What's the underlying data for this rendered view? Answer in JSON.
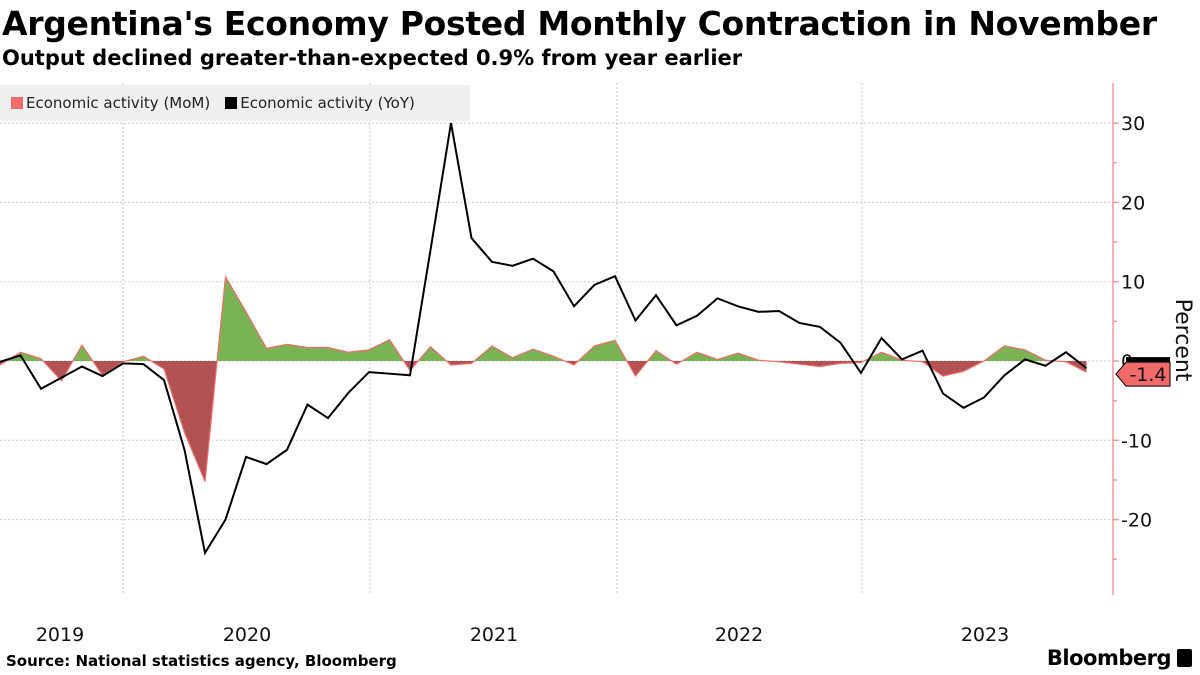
{
  "header": {
    "title": "Argentina's Economy Posted Monthly Contraction in November",
    "subtitle": "Output declined greater-than-expected 0.9% from year earlier"
  },
  "footer": {
    "source": "Source: National statistics agency, Bloomberg",
    "logo": "Bloomberg"
  },
  "colors": {
    "mom_outline": "#f26b6b",
    "positive_fill": "#7ab353",
    "negative_fill": "#b25252",
    "yoy_line": "#000000",
    "axis": "#f29a9a",
    "badge": "#f26b6b"
  },
  "chart_data": {
    "type": "area+line",
    "title": "Argentina's Economy Posted Monthly Contraction in November",
    "ylabel": "Percent",
    "ylim": [
      -29.5,
      35
    ],
    "yticks": [
      30,
      20,
      10,
      0,
      -10,
      -20
    ],
    "ytick_labels": [
      "30",
      "20",
      "10",
      "0",
      "-10",
      "-20"
    ],
    "xtick_labels": [
      "2019",
      "2020",
      "2021",
      "2022",
      "2023"
    ],
    "x_start": "2019-06",
    "x_end": "2023-11",
    "frequency": "monthly",
    "legend": {
      "placement": "top-left",
      "entries": [
        "Economic activity (MoM)",
        "Economic activity (YoY)"
      ]
    },
    "last_value_label": "-1.4",
    "series": [
      {
        "name": "Economic activity (MoM)",
        "type": "area",
        "values": [
          -0.5,
          1.1,
          0.3,
          -2.5,
          2.0,
          -1.8,
          -0.1,
          0.6,
          -1.0,
          -9.0,
          -15.2,
          10.6,
          6.2,
          1.6,
          2.1,
          1.7,
          1.7,
          1.1,
          1.4,
          2.7,
          -1.2,
          1.8,
          -0.5,
          -0.3,
          1.9,
          0.4,
          1.5,
          0.6,
          -0.5,
          1.9,
          2.6,
          -1.9,
          1.3,
          -0.4,
          1.1,
          0.2,
          1.0,
          0.1,
          -0.1,
          -0.4,
          -0.7,
          -0.3,
          -0.2,
          1.1,
          0.1,
          -0.1,
          -1.9,
          -1.3,
          0.0,
          1.9,
          1.4,
          0.1,
          -0.1,
          -1.4
        ]
      },
      {
        "name": "Economic activity (YoY)",
        "type": "line",
        "values": [
          -0.1,
          0.7,
          -3.5,
          -2.1,
          -0.7,
          -1.9,
          -0.3,
          -0.4,
          -2.4,
          -11.2,
          -24.2,
          -20.0,
          -12.1,
          -13.0,
          -11.2,
          -5.5,
          -7.2,
          -4.0,
          -1.4,
          -1.6,
          -1.8,
          14.0,
          30.0,
          15.5,
          12.5,
          12.0,
          12.9,
          11.3,
          6.9,
          9.6,
          10.7,
          5.1,
          8.3,
          4.5,
          5.7,
          7.9,
          6.9,
          6.2,
          6.3,
          4.8,
          4.3,
          2.3,
          -1.5,
          2.9,
          0.2,
          1.3,
          -4.1,
          -5.9,
          -4.6,
          -1.8,
          0.2,
          -0.6,
          1.1,
          -0.9
        ]
      }
    ]
  }
}
